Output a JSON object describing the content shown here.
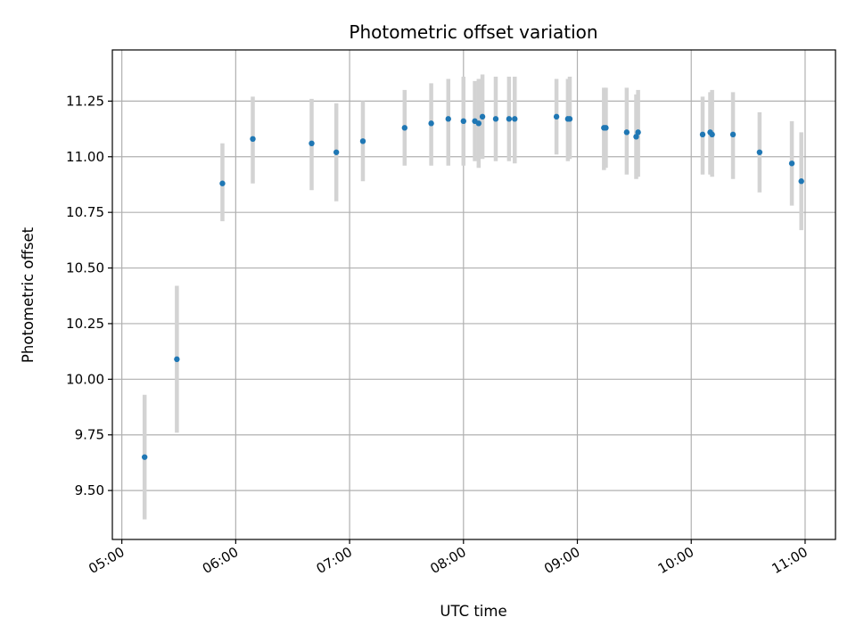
{
  "chart_data": {
    "type": "scatter",
    "title": "Photometric offset variation",
    "xlabel": "UTC time",
    "ylabel": "Photometric offset",
    "x_tick_labels": [
      "05:00",
      "06:00",
      "07:00",
      "08:00",
      "09:00",
      "10:00",
      "11:00"
    ],
    "y_tick_labels": [
      "9.50",
      "9.75",
      "10.00",
      "10.25",
      "10.50",
      "10.75",
      "11.00",
      "11.25"
    ],
    "xlim": [
      "04:55",
      "11:16"
    ],
    "ylim": [
      9.28,
      11.48
    ],
    "grid": true,
    "colors": {
      "points": "#1f77b4",
      "errorbars": "#d3d3d3",
      "grid": "#b0b0b0"
    },
    "series": [
      {
        "points": [
          {
            "x": "05:12",
            "y": 9.65,
            "lo": 9.37,
            "hi": 9.93
          },
          {
            "x": "05:29",
            "y": 10.09,
            "lo": 9.76,
            "hi": 10.42
          },
          {
            "x": "05:53",
            "y": 10.88,
            "lo": 10.71,
            "hi": 11.06
          },
          {
            "x": "06:09",
            "y": 11.08,
            "lo": 10.88,
            "hi": 11.27
          },
          {
            "x": "06:40",
            "y": 11.06,
            "lo": 10.85,
            "hi": 11.26
          },
          {
            "x": "06:53",
            "y": 11.02,
            "lo": 10.8,
            "hi": 11.24
          },
          {
            "x": "07:07",
            "y": 11.07,
            "lo": 10.89,
            "hi": 11.25
          },
          {
            "x": "07:29",
            "y": 11.13,
            "lo": 10.96,
            "hi": 11.3
          },
          {
            "x": "07:43",
            "y": 11.15,
            "lo": 10.96,
            "hi": 11.33
          },
          {
            "x": "07:52",
            "y": 11.17,
            "lo": 10.96,
            "hi": 11.35
          },
          {
            "x": "08:00",
            "y": 11.16,
            "lo": 10.96,
            "hi": 11.36
          },
          {
            "x": "08:06",
            "y": 11.16,
            "lo": 10.98,
            "hi": 11.34
          },
          {
            "x": "08:08",
            "y": 11.15,
            "lo": 10.95,
            "hi": 11.35
          },
          {
            "x": "08:10",
            "y": 11.18,
            "lo": 10.99,
            "hi": 11.37
          },
          {
            "x": "08:17",
            "y": 11.17,
            "lo": 10.98,
            "hi": 11.36
          },
          {
            "x": "08:24",
            "y": 11.17,
            "lo": 10.98,
            "hi": 11.36
          },
          {
            "x": "08:27",
            "y": 11.17,
            "lo": 10.97,
            "hi": 11.36
          },
          {
            "x": "08:49",
            "y": 11.18,
            "lo": 11.01,
            "hi": 11.35
          },
          {
            "x": "08:55",
            "y": 11.17,
            "lo": 10.98,
            "hi": 11.35
          },
          {
            "x": "08:56",
            "y": 11.17,
            "lo": 10.99,
            "hi": 11.36
          },
          {
            "x": "09:14",
            "y": 11.13,
            "lo": 10.94,
            "hi": 11.31
          },
          {
            "x": "09:15",
            "y": 11.13,
            "lo": 10.95,
            "hi": 11.31
          },
          {
            "x": "09:26",
            "y": 11.11,
            "lo": 10.92,
            "hi": 11.31
          },
          {
            "x": "09:31",
            "y": 11.09,
            "lo": 10.9,
            "hi": 11.28
          },
          {
            "x": "09:32",
            "y": 11.11,
            "lo": 10.91,
            "hi": 11.3
          },
          {
            "x": "10:06",
            "y": 11.1,
            "lo": 10.92,
            "hi": 11.27
          },
          {
            "x": "10:10",
            "y": 11.11,
            "lo": 10.92,
            "hi": 11.29
          },
          {
            "x": "10:11",
            "y": 11.1,
            "lo": 10.91,
            "hi": 11.3
          },
          {
            "x": "10:22",
            "y": 11.1,
            "lo": 10.9,
            "hi": 11.29
          },
          {
            "x": "10:36",
            "y": 11.02,
            "lo": 10.84,
            "hi": 11.2
          },
          {
            "x": "10:53",
            "y": 10.97,
            "lo": 10.78,
            "hi": 11.16
          },
          {
            "x": "10:58",
            "y": 10.89,
            "lo": 10.67,
            "hi": 11.11
          }
        ]
      }
    ]
  }
}
